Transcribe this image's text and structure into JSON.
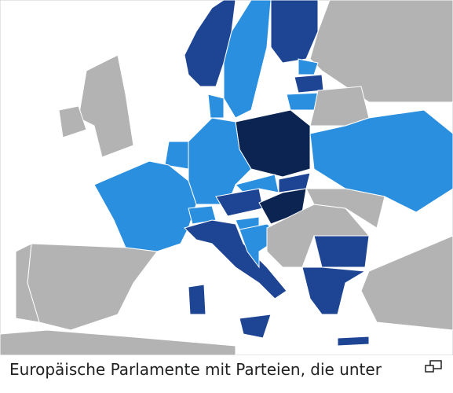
{
  "caption": {
    "text": "Europäische Parlamente mit Parteien, die unter"
  }
}
